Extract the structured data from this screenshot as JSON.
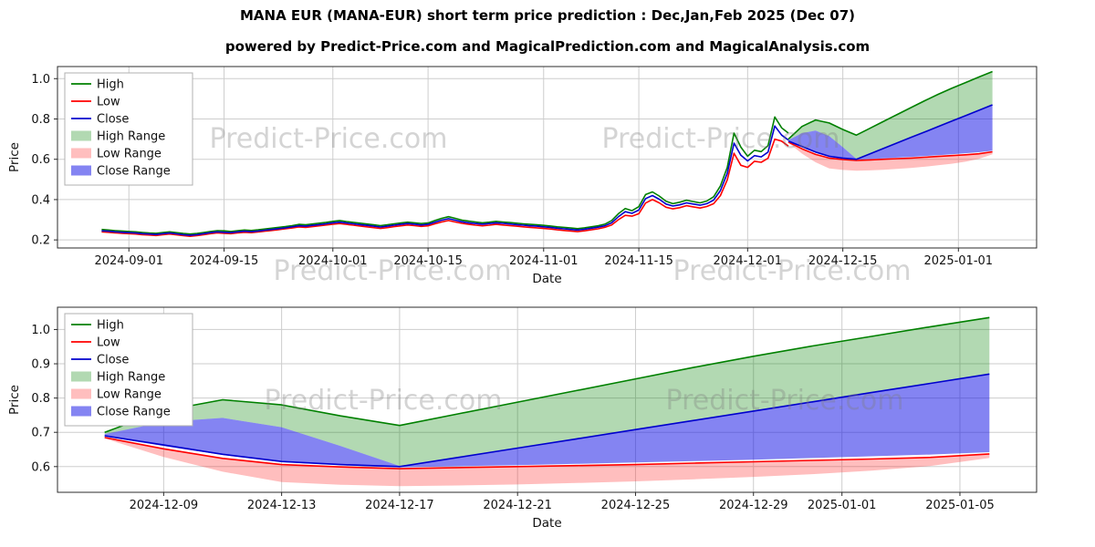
{
  "figure": {
    "title": "MANA EUR (MANA-EUR) short term price prediction : Dec,Jan,Feb 2025 (Dec 07)",
    "subtitle": "powered by Predict-Price.com and MagicalPrediction.com and MagicalAnalysis.com",
    "watermark": "Predict-Price.com"
  },
  "chart_data": {
    "type": "line",
    "title": "MANA EUR (MANA-EUR) short term price prediction : Dec,Jan,Feb 2025 (Dec 07)",
    "subtitle": "powered by Predict-Price.com and MagicalPrediction.com and MagicalAnalysis.com",
    "colors": {
      "high": "#008000",
      "low": "#ff0000",
      "close": "#0000cd",
      "high_range": "rgba(0,128,0,0.3)",
      "low_range": "rgba(255,40,40,0.3)",
      "close_range": "rgba(10,10,230,0.5)"
    },
    "charts": [
      {
        "name": "history-with-prediction",
        "xlabel": "Date",
        "ylabel": "Price",
        "hist_start_date": "2024-08-28",
        "xlim": [
          -6.5,
          137.5
        ],
        "ylim": [
          0.16,
          1.06
        ],
        "xticks": [
          {
            "x": 4,
            "label": "2024-09-01"
          },
          {
            "x": 18,
            "label": "2024-09-15"
          },
          {
            "x": 34,
            "label": "2024-10-01"
          },
          {
            "x": 48,
            "label": "2024-10-15"
          },
          {
            "x": 65,
            "label": "2024-11-01"
          },
          {
            "x": 79,
            "label": "2024-11-15"
          },
          {
            "x": 95,
            "label": "2024-12-01"
          },
          {
            "x": 109,
            "label": "2024-12-15"
          },
          {
            "x": 126,
            "label": "2025-01-01"
          }
        ],
        "yticks": [
          {
            "y": 0.2,
            "label": "0.2"
          },
          {
            "y": 0.4,
            "label": "0.4"
          },
          {
            "y": 0.6,
            "label": "0.6"
          },
          {
            "y": 0.8,
            "label": "0.8"
          },
          {
            "y": 1.0,
            "label": "1.0"
          }
        ],
        "legend": [
          {
            "label": "High",
            "type": "line",
            "color": "#008000"
          },
          {
            "label": "Low",
            "type": "line",
            "color": "#ff0000"
          },
          {
            "label": "Close",
            "type": "line",
            "color": "#0000cd"
          },
          {
            "label": "High Range",
            "type": "patch",
            "color": "rgba(0,128,0,0.3)"
          },
          {
            "label": "Low Range",
            "type": "patch",
            "color": "rgba(255,40,40,0.3)"
          },
          {
            "label": "Close Range",
            "type": "patch",
            "color": "rgba(10,10,230,0.5)"
          }
        ],
        "lines": [
          {
            "name": "high-history",
            "color": "#008000",
            "x_start": 0,
            "y": [
              0.252,
              0.249,
              0.246,
              0.244,
              0.242,
              0.24,
              0.237,
              0.234,
              0.233,
              0.237,
              0.24,
              0.236,
              0.232,
              0.229,
              0.232,
              0.237,
              0.242,
              0.246,
              0.245,
              0.242,
              0.246,
              0.249,
              0.247,
              0.25,
              0.254,
              0.258,
              0.262,
              0.266,
              0.271,
              0.277,
              0.275,
              0.279,
              0.283,
              0.287,
              0.292,
              0.296,
              0.291,
              0.287,
              0.283,
              0.279,
              0.275,
              0.271,
              0.275,
              0.28,
              0.284,
              0.288,
              0.285,
              0.281,
              0.284,
              0.296,
              0.307,
              0.315,
              0.307,
              0.298,
              0.293,
              0.289,
              0.285,
              0.288,
              0.292,
              0.289,
              0.286,
              0.283,
              0.28,
              0.277,
              0.275,
              0.272,
              0.269,
              0.265,
              0.262,
              0.259,
              0.256,
              0.26,
              0.265,
              0.27,
              0.278,
              0.296,
              0.33,
              0.356,
              0.345,
              0.365,
              0.425,
              0.438,
              0.418,
              0.392,
              0.38,
              0.387,
              0.397,
              0.39,
              0.384,
              0.393,
              0.414,
              0.468,
              0.56,
              0.73,
              0.66,
              0.615,
              0.645,
              0.638,
              0.668,
              0.81,
              0.756,
              0.73
            ]
          },
          {
            "name": "low-history",
            "color": "#ff0000",
            "x_start": 0,
            "y": [
              0.24,
              0.238,
              0.235,
              0.233,
              0.231,
              0.229,
              0.226,
              0.224,
              0.222,
              0.226,
              0.229,
              0.225,
              0.221,
              0.218,
              0.221,
              0.226,
              0.231,
              0.235,
              0.233,
              0.231,
              0.235,
              0.238,
              0.236,
              0.239,
              0.243,
              0.247,
              0.251,
              0.255,
              0.259,
              0.264,
              0.262,
              0.266,
              0.27,
              0.274,
              0.278,
              0.281,
              0.277,
              0.273,
              0.269,
              0.265,
              0.261,
              0.257,
              0.261,
              0.266,
              0.27,
              0.274,
              0.271,
              0.267,
              0.27,
              0.28,
              0.289,
              0.296,
              0.289,
              0.282,
              0.277,
              0.273,
              0.27,
              0.273,
              0.277,
              0.274,
              0.271,
              0.268,
              0.265,
              0.262,
              0.26,
              0.257,
              0.254,
              0.25,
              0.247,
              0.244,
              0.241,
              0.245,
              0.25,
              0.255,
              0.262,
              0.274,
              0.3,
              0.322,
              0.318,
              0.33,
              0.383,
              0.4,
              0.384,
              0.362,
              0.354,
              0.36,
              0.37,
              0.364,
              0.358,
              0.366,
              0.38,
              0.42,
              0.498,
              0.63,
              0.57,
              0.56,
              0.59,
              0.585,
              0.605,
              0.7,
              0.69,
              0.665
            ]
          },
          {
            "name": "close-history",
            "color": "#0000cd",
            "x_start": 0,
            "y": [
              0.245,
              0.243,
              0.24,
              0.238,
              0.236,
              0.234,
              0.231,
              0.229,
              0.227,
              0.231,
              0.234,
              0.23,
              0.226,
              0.223,
              0.226,
              0.231,
              0.236,
              0.24,
              0.238,
              0.236,
              0.24,
              0.243,
              0.241,
              0.244,
              0.248,
              0.252,
              0.256,
              0.26,
              0.265,
              0.27,
              0.268,
              0.272,
              0.276,
              0.28,
              0.285,
              0.288,
              0.284,
              0.28,
              0.276,
              0.272,
              0.268,
              0.264,
              0.268,
              0.273,
              0.277,
              0.281,
              0.278,
              0.274,
              0.277,
              0.288,
              0.298,
              0.305,
              0.298,
              0.29,
              0.285,
              0.281,
              0.278,
              0.281,
              0.285,
              0.282,
              0.279,
              0.276,
              0.273,
              0.27,
              0.268,
              0.265,
              0.262,
              0.258,
              0.255,
              0.252,
              0.249,
              0.253,
              0.258,
              0.263,
              0.27,
              0.285,
              0.315,
              0.34,
              0.332,
              0.348,
              0.405,
              0.42,
              0.402,
              0.378,
              0.368,
              0.374,
              0.384,
              0.378,
              0.372,
              0.38,
              0.398,
              0.445,
              0.53,
              0.68,
              0.62,
              0.592,
              0.618,
              0.612,
              0.636,
              0.765,
              0.72,
              0.695
            ]
          },
          {
            "name": "high-prediction",
            "color": "#008000",
            "pred_key": "high_upper"
          },
          {
            "name": "low-prediction",
            "color": "#ff0000",
            "pred_key": "low_upper"
          },
          {
            "name": "close-prediction",
            "color": "#0000cd",
            "pred_key": "close"
          }
        ],
        "prediction": {
          "dates": [
            "2024-12-07",
            "2024-12-09",
            "2024-12-11",
            "2024-12-13",
            "2024-12-15",
            "2024-12-17",
            "2024-12-19",
            "2024-12-21",
            "2024-12-23",
            "2024-12-25",
            "2024-12-27",
            "2024-12-29",
            "2024-12-31",
            "2025-01-02",
            "2025-01-04",
            "2025-01-06"
          ],
          "x": [
            101,
            103,
            105,
            107,
            109,
            111,
            113,
            115,
            117,
            119,
            121,
            123,
            125,
            127,
            129,
            131
          ],
          "close": [
            0.69,
            0.663,
            0.636,
            0.615,
            0.606,
            0.6,
            0.627,
            0.654,
            0.681,
            0.708,
            0.735,
            0.762,
            0.789,
            0.816,
            0.843,
            0.87
          ],
          "high_upper": [
            0.7,
            0.763,
            0.795,
            0.78,
            0.748,
            0.72,
            0.754,
            0.788,
            0.822,
            0.856,
            0.89,
            0.922,
            0.952,
            0.98,
            1.008,
            1.035
          ],
          "close_upper": [
            0.695,
            0.73,
            0.742,
            0.715,
            0.66,
            0.602,
            0.627,
            0.654,
            0.681,
            0.708,
            0.735,
            0.762,
            0.789,
            0.816,
            0.843,
            0.87
          ],
          "close_lower": [
            0.688,
            0.66,
            0.634,
            0.613,
            0.604,
            0.598,
            0.601,
            0.604,
            0.608,
            0.612,
            0.616,
            0.62,
            0.625,
            0.63,
            0.635,
            0.642
          ],
          "low_upper": [
            0.685,
            0.652,
            0.624,
            0.606,
            0.599,
            0.594,
            0.597,
            0.6,
            0.603,
            0.606,
            0.61,
            0.614,
            0.618,
            0.622,
            0.627,
            0.637
          ],
          "low_lower": [
            0.682,
            0.628,
            0.585,
            0.555,
            0.547,
            0.543,
            0.545,
            0.548,
            0.552,
            0.557,
            0.563,
            0.57,
            0.578,
            0.588,
            0.602,
            0.625
          ]
        },
        "bands": [
          {
            "name": "high-range",
            "upper": "high_upper",
            "lower": "close_upper",
            "fill": "rgba(0,128,0,0.3)"
          },
          {
            "name": "low-range",
            "upper": "low_upper",
            "lower": "low_lower",
            "fill": "rgba(255,40,40,0.3)"
          },
          {
            "name": "close-range",
            "upper": "close_upper",
            "lower": "close_lower",
            "fill": "rgba(10,10,230,0.5)"
          }
        ]
      },
      {
        "name": "prediction-detail",
        "xlabel": "Date",
        "ylabel": "Price",
        "xlim": [
          -1.6,
          31.6
        ],
        "ylim": [
          0.525,
          1.065
        ],
        "xticks": [
          {
            "x": 2,
            "label": "2024-12-09"
          },
          {
            "x": 6,
            "label": "2024-12-13"
          },
          {
            "x": 10,
            "label": "2024-12-17"
          },
          {
            "x": 14,
            "label": "2024-12-21"
          },
          {
            "x": 18,
            "label": "2024-12-25"
          },
          {
            "x": 22,
            "label": "2024-12-29"
          },
          {
            "x": 25,
            "label": "2025-01-01"
          },
          {
            "x": 29,
            "label": "2025-01-05"
          }
        ],
        "yticks": [
          {
            "y": 0.6,
            "label": "0.6"
          },
          {
            "y": 0.7,
            "label": "0.7"
          },
          {
            "y": 0.8,
            "label": "0.8"
          },
          {
            "y": 0.9,
            "label": "0.9"
          },
          {
            "y": 1.0,
            "label": "1.0"
          }
        ],
        "legend": [
          {
            "label": "High",
            "type": "line",
            "color": "#008000"
          },
          {
            "label": "Low",
            "type": "line",
            "color": "#ff0000"
          },
          {
            "label": "Close",
            "type": "line",
            "color": "#0000cd"
          },
          {
            "label": "High Range",
            "type": "patch",
            "color": "rgba(0,128,0,0.3)"
          },
          {
            "label": "Low Range",
            "type": "patch",
            "color": "rgba(255,40,40,0.3)"
          },
          {
            "label": "Close Range",
            "type": "patch",
            "color": "rgba(10,10,230,0.5)"
          }
        ],
        "lines": [
          {
            "name": "high-prediction",
            "color": "#008000",
            "pred_key": "high_upper"
          },
          {
            "name": "low-prediction",
            "color": "#ff0000",
            "pred_key": "low_upper"
          },
          {
            "name": "close-prediction",
            "color": "#0000cd",
            "pred_key": "close"
          }
        ],
        "prediction": {
          "dates": [
            "2024-12-07",
            "2024-12-09",
            "2024-12-11",
            "2024-12-13",
            "2024-12-15",
            "2024-12-17",
            "2024-12-19",
            "2024-12-21",
            "2024-12-23",
            "2024-12-25",
            "2024-12-27",
            "2024-12-29",
            "2024-12-31",
            "2025-01-02",
            "2025-01-04",
            "2025-01-06"
          ],
          "x": [
            0,
            2,
            4,
            6,
            8,
            10,
            12,
            14,
            16,
            18,
            20,
            22,
            24,
            26,
            28,
            30
          ],
          "close": [
            0.69,
            0.663,
            0.636,
            0.615,
            0.606,
            0.6,
            0.627,
            0.654,
            0.681,
            0.708,
            0.735,
            0.762,
            0.789,
            0.816,
            0.843,
            0.87
          ],
          "high_upper": [
            0.7,
            0.763,
            0.795,
            0.78,
            0.748,
            0.72,
            0.754,
            0.788,
            0.822,
            0.856,
            0.89,
            0.922,
            0.952,
            0.98,
            1.008,
            1.035
          ],
          "close_upper": [
            0.695,
            0.73,
            0.742,
            0.715,
            0.66,
            0.602,
            0.627,
            0.654,
            0.681,
            0.708,
            0.735,
            0.762,
            0.789,
            0.816,
            0.843,
            0.87
          ],
          "close_lower": [
            0.688,
            0.66,
            0.634,
            0.613,
            0.604,
            0.598,
            0.601,
            0.604,
            0.608,
            0.612,
            0.616,
            0.62,
            0.625,
            0.63,
            0.635,
            0.642
          ],
          "low_upper": [
            0.685,
            0.652,
            0.624,
            0.606,
            0.599,
            0.594,
            0.597,
            0.6,
            0.603,
            0.606,
            0.61,
            0.614,
            0.618,
            0.622,
            0.627,
            0.637
          ],
          "low_lower": [
            0.682,
            0.628,
            0.585,
            0.555,
            0.547,
            0.543,
            0.545,
            0.548,
            0.552,
            0.557,
            0.563,
            0.57,
            0.578,
            0.588,
            0.602,
            0.625
          ]
        },
        "bands": [
          {
            "name": "high-range",
            "upper": "high_upper",
            "lower": "close_upper",
            "fill": "rgba(0,128,0,0.3)"
          },
          {
            "name": "low-range",
            "upper": "low_upper",
            "lower": "low_lower",
            "fill": "rgba(255,40,40,0.3)"
          },
          {
            "name": "close-range",
            "upper": "close_upper",
            "lower": "close_lower",
            "fill": "rgba(10,10,230,0.5)"
          }
        ]
      }
    ]
  }
}
